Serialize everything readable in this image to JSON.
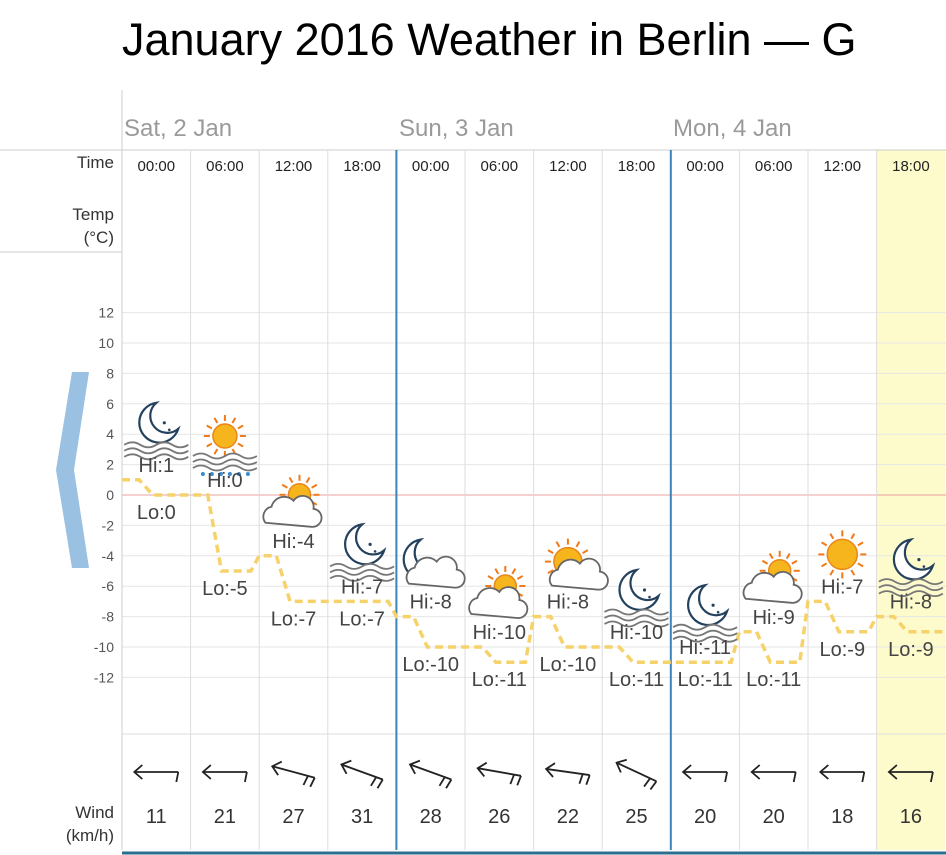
{
  "title": "January 2016 Weather in Berlin — G",
  "labels": {
    "time": "Time",
    "temp_line1": "Temp",
    "temp_line2": "(°C)",
    "wind_line1": "Wind",
    "wind_line2": "(km/h)"
  },
  "days": [
    {
      "label": "Sat, 2 Jan"
    },
    {
      "label": "Sun, 3 Jan"
    },
    {
      "label": "Mon, 4 Jan"
    }
  ],
  "colors": {
    "highlight": "#fdfbcb",
    "day_separator": "#3a84b7",
    "temp_line": "#f6d26b",
    "zero_line": "#e8a0a0",
    "grid": "#e6e6e6",
    "back_arrow": "#9ac0e2"
  },
  "chart_data": {
    "type": "line",
    "y_ticks": [
      12,
      10,
      8,
      6,
      4,
      2,
      0,
      -2,
      -4,
      -6,
      -8,
      -10,
      -12
    ],
    "ylim": [
      -12,
      12
    ],
    "periods": [
      {
        "time": "00:00",
        "hi": "Hi:1",
        "lo": "Lo:0",
        "hi_val": 1,
        "lo_val": 0,
        "icon": "moon-clear-icon",
        "wind": "11",
        "wind_dir": 0
      },
      {
        "time": "06:00",
        "hi": "Hi:0",
        "lo": "Lo:-5",
        "hi_val": 0,
        "lo_val": -5,
        "icon": "sun-fog-icon",
        "wind": "21",
        "wind_dir": 0
      },
      {
        "time": "12:00",
        "hi": "Hi:-4",
        "lo": "Lo:-7",
        "hi_val": -4,
        "lo_val": -7,
        "icon": "sun-cloud-icon",
        "wind": "27",
        "wind_dir": 15
      },
      {
        "time": "18:00",
        "hi": "Hi:-7",
        "lo": "Lo:-7",
        "hi_val": -7,
        "lo_val": -7,
        "icon": "moon-clear-icon",
        "wind": "31",
        "wind_dir": 20
      },
      {
        "time": "00:00",
        "hi": "Hi:-8",
        "lo": "Lo:-10",
        "hi_val": -8,
        "lo_val": -10,
        "icon": "moon-cloud-icon",
        "wind": "28",
        "wind_dir": 20
      },
      {
        "time": "06:00",
        "hi": "Hi:-10",
        "lo": "Lo:-11",
        "hi_val": -10,
        "lo_val": -11,
        "icon": "sun-cloud-icon",
        "wind": "26",
        "wind_dir": 10
      },
      {
        "time": "12:00",
        "hi": "Hi:-8",
        "lo": "Lo:-10",
        "hi_val": -8,
        "lo_val": -10,
        "icon": "sun-small-cloud-icon",
        "wind": "22",
        "wind_dir": 8
      },
      {
        "time": "18:00",
        "hi": "Hi:-10",
        "lo": "Lo:-11",
        "hi_val": -10,
        "lo_val": -11,
        "icon": "moon-clear-icon",
        "wind": "25",
        "wind_dir": 25
      },
      {
        "time": "00:00",
        "hi": "Hi:-11",
        "lo": "Lo:-11",
        "hi_val": -11,
        "lo_val": -11,
        "icon": "moon-clear-icon",
        "wind": "20",
        "wind_dir": 0
      },
      {
        "time": "06:00",
        "hi": "Hi:-9",
        "lo": "Lo:-11",
        "hi_val": -9,
        "lo_val": -11,
        "icon": "sun-cloud-icon",
        "wind": "20",
        "wind_dir": 0
      },
      {
        "time": "12:00",
        "hi": "Hi:-7",
        "lo": "Lo:-9",
        "hi_val": -7,
        "lo_val": -9,
        "icon": "sun-icon",
        "wind": "18",
        "wind_dir": 0
      },
      {
        "time": "18:00",
        "hi": "Hi:-8",
        "lo": "Lo:-9",
        "hi_val": -8,
        "lo_val": -9,
        "icon": "moon-clear-icon",
        "wind": "16",
        "wind_dir": 0,
        "highlighted": true
      }
    ]
  }
}
